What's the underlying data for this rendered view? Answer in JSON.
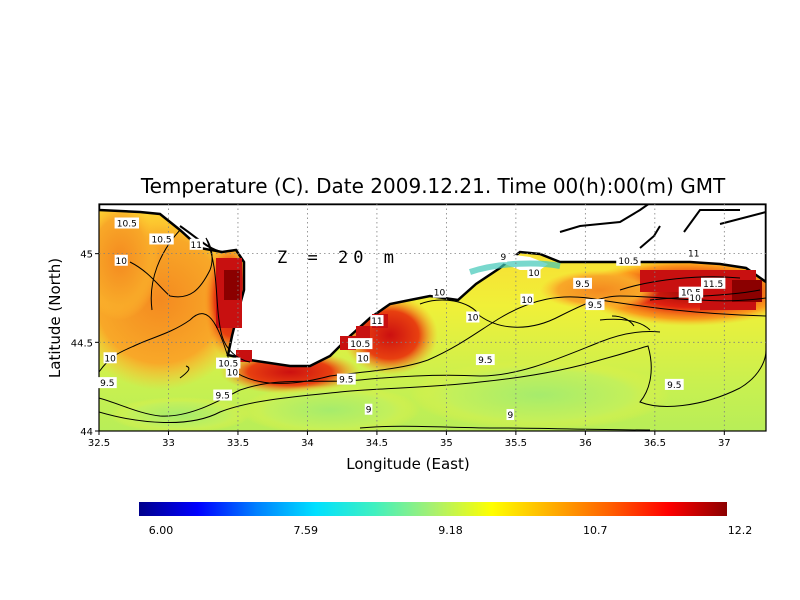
{
  "title": "Temperature (C). Date 2009.12.21. Time 00(h):00(m) GMT",
  "depth_label": "Z = 20 m",
  "xlabel": "Longitude (East)",
  "ylabel": "Latitude (North)",
  "x_ticks": [
    "32.5",
    "33",
    "33.5",
    "34",
    "34.5",
    "35",
    "35.5",
    "36",
    "36.5",
    "37"
  ],
  "y_ticks": [
    "44",
    "44.5",
    "45"
  ],
  "colorbar": {
    "ticks": [
      "6.00",
      "7.59",
      "9.18",
      "10.7",
      "12.2"
    ],
    "colors": [
      "#00008b",
      "#0000ff",
      "#0080ff",
      "#00e0ff",
      "#40f0c0",
      "#a8f070",
      "#ffff00",
      "#ffb000",
      "#ff6000",
      "#ff0000",
      "#8b0000"
    ]
  },
  "contour_labels": [
    {
      "text": "10.5",
      "lon": 32.7,
      "lat": 45.17
    },
    {
      "text": "10.5",
      "lon": 32.95,
      "lat": 45.08
    },
    {
      "text": "11",
      "lon": 33.2,
      "lat": 45.05
    },
    {
      "text": "10",
      "lon": 32.66,
      "lat": 44.96
    },
    {
      "text": "10",
      "lon": 32.58,
      "lat": 44.41
    },
    {
      "text": "9.5",
      "lon": 32.56,
      "lat": 44.27
    },
    {
      "text": "10.5",
      "lon": 33.43,
      "lat": 44.38
    },
    {
      "text": "10",
      "lon": 33.46,
      "lat": 44.33
    },
    {
      "text": "9.5",
      "lon": 33.39,
      "lat": 44.2
    },
    {
      "text": "10",
      "lon": 34.4,
      "lat": 44.41
    },
    {
      "text": "10.5",
      "lon": 34.38,
      "lat": 44.49
    },
    {
      "text": "11",
      "lon": 34.5,
      "lat": 44.62
    },
    {
      "text": "9.5",
      "lon": 34.28,
      "lat": 44.29
    },
    {
      "text": "9",
      "lon": 34.44,
      "lat": 44.12
    },
    {
      "text": "10",
      "lon": 34.95,
      "lat": 44.78
    },
    {
      "text": "10",
      "lon": 35.19,
      "lat": 44.64
    },
    {
      "text": "9",
      "lon": 35.41,
      "lat": 44.98
    },
    {
      "text": "10",
      "lon": 35.63,
      "lat": 44.89
    },
    {
      "text": "10",
      "lon": 35.58,
      "lat": 44.74
    },
    {
      "text": "9.5",
      "lon": 35.28,
      "lat": 44.4
    },
    {
      "text": "9",
      "lon": 35.46,
      "lat": 44.09
    },
    {
      "text": "9.5",
      "lon": 35.98,
      "lat": 44.83
    },
    {
      "text": "9.5",
      "lon": 36.07,
      "lat": 44.71
    },
    {
      "text": "10.5",
      "lon": 36.31,
      "lat": 44.96
    },
    {
      "text": "11",
      "lon": 36.78,
      "lat": 45.0
    },
    {
      "text": "11.5",
      "lon": 36.92,
      "lat": 44.83
    },
    {
      "text": "10.5",
      "lon": 36.76,
      "lat": 44.78
    },
    {
      "text": "10",
      "lon": 36.79,
      "lat": 44.75
    },
    {
      "text": "9.5",
      "lon": 36.64,
      "lat": 44.26
    }
  ]
}
